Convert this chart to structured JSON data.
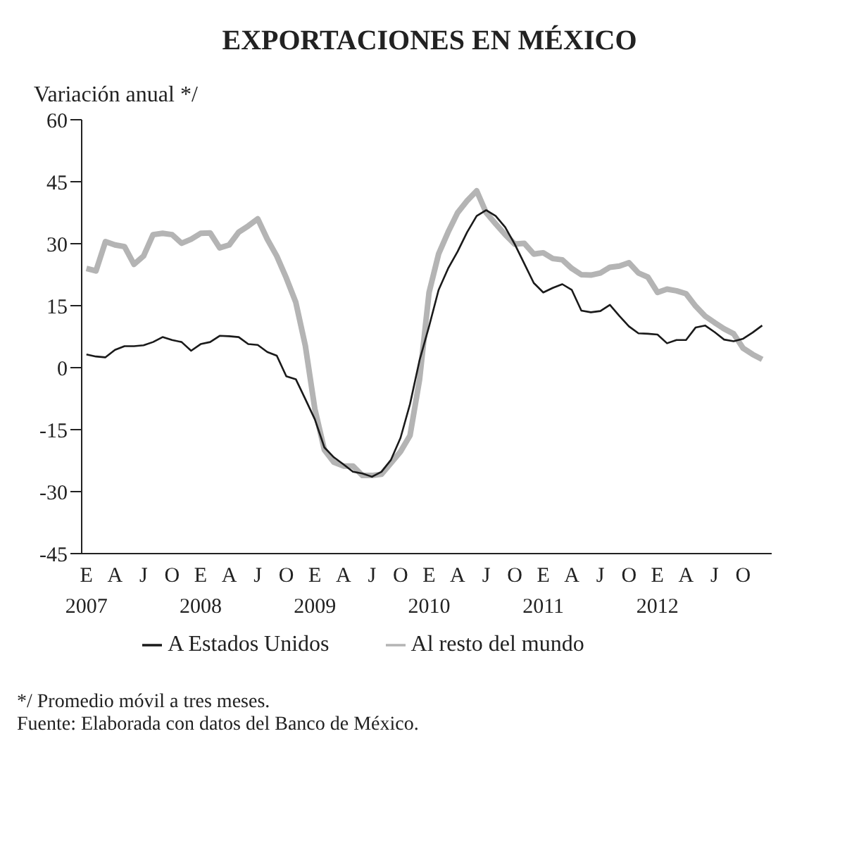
{
  "chart_data": {
    "type": "line",
    "title": "EXPORTACIONES EN MÉXICO",
    "ylabel": "Variación anual */",
    "categories": [
      "E\n2007",
      null,
      null,
      "A",
      null,
      null,
      "J",
      null,
      null,
      "O",
      null,
      null,
      "E\n2008",
      null,
      null,
      "A",
      null,
      null,
      "J",
      null,
      null,
      "O",
      null,
      null,
      "E\n2009",
      null,
      null,
      "A",
      null,
      null,
      "J",
      null,
      null,
      "O",
      null,
      null,
      "E\n2010",
      null,
      null,
      "A",
      null,
      null,
      "J",
      null,
      null,
      "O",
      null,
      null,
      "E\n2011",
      null,
      null,
      "A",
      null,
      null,
      "J",
      null,
      null,
      "O",
      null,
      null,
      "E\n2012",
      null,
      null,
      "A",
      null,
      null,
      "J",
      null,
      null,
      "O",
      null,
      null
    ],
    "series": [
      {
        "name": "A Estados Unidos",
        "color": "#1a1a1a",
        "line_style": "solid",
        "values": [
          3.2,
          2.7,
          2.5,
          4.3,
          5.2,
          5.2,
          5.4,
          6.2,
          7.4,
          6.7,
          6.2,
          4.1,
          5.7,
          6.2,
          7.7,
          7.6,
          7.4,
          5.7,
          5.5,
          3.8,
          2.9,
          -2.1,
          -2.8,
          -7.6,
          -12.5,
          -19.3,
          -21.7,
          -23.4,
          -25.2,
          -25.6,
          -26.4,
          -25.2,
          -22.3,
          -17,
          -8.8,
          1.8,
          10,
          18.8,
          24,
          28.1,
          32.8,
          36.7,
          38.1,
          36.7,
          34,
          29.9,
          25.2,
          20.5,
          18.2,
          19.3,
          20.2,
          18.8,
          13.8,
          13.4,
          13.7,
          15.2,
          12.5,
          10,
          8.3,
          8.2,
          8,
          5.9,
          6.7,
          6.7,
          9.7,
          10.2,
          8.6,
          6.8,
          6.4,
          7,
          8.5,
          10.2
        ]
      },
      {
        "name": "Al resto del mundo",
        "color": "#b4b4b4",
        "line_style": "solid",
        "values": [
          24,
          23.4,
          30.5,
          29.7,
          29.3,
          25,
          27,
          32.2,
          32.5,
          32.2,
          30.1,
          31.1,
          32.5,
          32.6,
          29,
          29.7,
          32.8,
          34.3,
          36,
          31.1,
          27,
          21.7,
          15.8,
          5.3,
          -10,
          -19.9,
          -22.9,
          -23.8,
          -23.8,
          -26.1,
          -26.1,
          -25.8,
          -23.1,
          -20.3,
          -16.4,
          -2.9,
          18.2,
          27.5,
          32.8,
          37.5,
          40.4,
          42.8,
          37.5,
          34.8,
          32.2,
          29.9,
          30.1,
          27.5,
          27.8,
          26.4,
          26.1,
          24,
          22.5,
          22.4,
          22.9,
          24.3,
          24.6,
          25.4,
          22.9,
          21.9,
          18.2,
          19,
          18.6,
          17.9,
          14.9,
          12.5,
          10.9,
          9.4,
          8.2,
          4.7,
          3.2,
          2
        ]
      }
    ],
    "ylim": [
      -45,
      60
    ],
    "yticks": [
      -45,
      -30,
      -15,
      0,
      15,
      30,
      45,
      60
    ],
    "grid": false,
    "legend": "bottom",
    "marker": "none",
    "annotations": [
      "*/ Promedio móvil a tres meses.",
      "Fuente: Elaborada con datos del Banco de México."
    ]
  }
}
